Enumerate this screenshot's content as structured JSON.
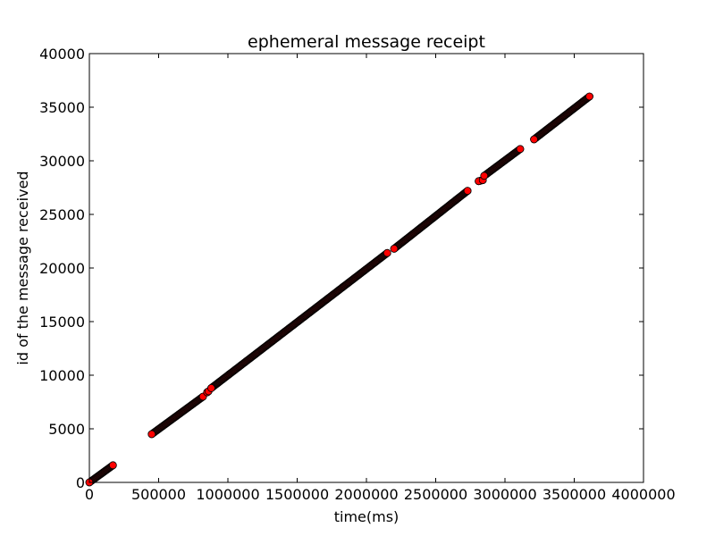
{
  "chart_data": {
    "type": "scatter",
    "title": "ephemeral message receipt",
    "xlabel": "time(ms)",
    "ylabel": "id of the message received",
    "xlim": [
      0,
      4000000
    ],
    "ylim": [
      0,
      40000
    ],
    "xticks": [
      0,
      500000,
      1000000,
      1500000,
      2000000,
      2500000,
      3000000,
      3500000,
      4000000
    ],
    "yticks": [
      0,
      5000,
      10000,
      15000,
      20000,
      25000,
      30000,
      35000,
      40000
    ],
    "grid": false,
    "marker_color": "#ff0000",
    "marker_edge_color": "#000000",
    "segments": [
      {
        "x_start": 0,
        "x_end": 170000,
        "y_start": 0,
        "y_end": 1600
      },
      {
        "x_start": 450000,
        "x_end": 820000,
        "y_start": 4500,
        "y_end": 8000
      },
      {
        "x_start": 850000,
        "x_end": 860000,
        "y_start": 8400,
        "y_end": 8500
      },
      {
        "x_start": 880000,
        "x_end": 2150000,
        "y_start": 8800,
        "y_end": 21400
      },
      {
        "x_start": 2200000,
        "x_end": 2730000,
        "y_start": 21800,
        "y_end": 27200
      },
      {
        "x_start": 2810000,
        "x_end": 2840000,
        "y_start": 28100,
        "y_end": 28200
      },
      {
        "x_start": 2850000,
        "x_end": 3110000,
        "y_start": 28600,
        "y_end": 31100
      },
      {
        "x_start": 3210000,
        "x_end": 3610000,
        "y_start": 32000,
        "y_end": 36000
      }
    ]
  }
}
